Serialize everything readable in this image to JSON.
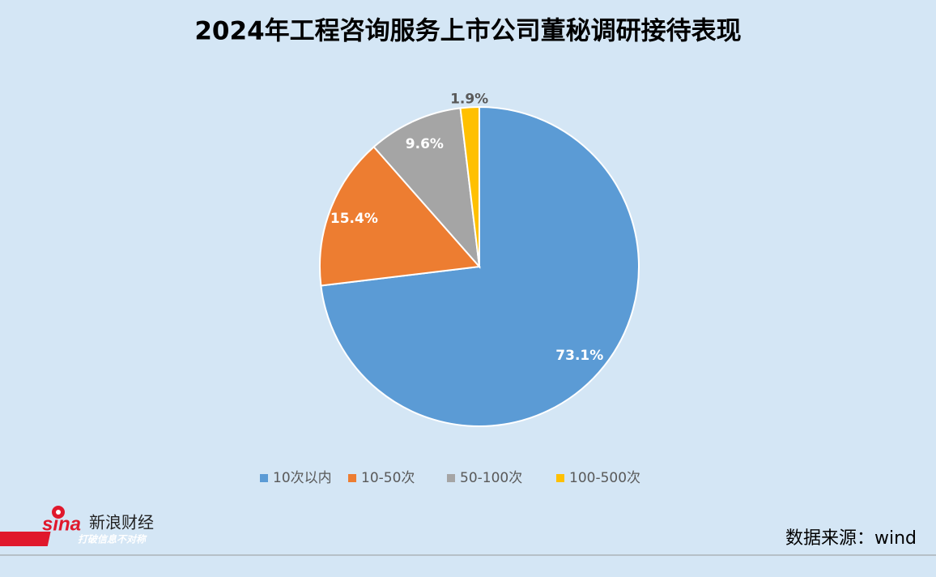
{
  "chart_data": {
    "type": "pie",
    "title": "2024年工程咨询服务上市公司董秘调研接待表现",
    "categories": [
      "10次以内",
      "10-50次",
      "50-100次",
      "100-500次"
    ],
    "values": [
      73.1,
      15.4,
      9.6,
      1.9
    ],
    "value_labels": [
      "73.1%",
      "15.4%",
      "9.6%",
      "1.9%"
    ],
    "colors": [
      "#5b9bd5",
      "#ed7d31",
      "#a5a5a5",
      "#ffc000"
    ],
    "legend": "bottom"
  },
  "source": "数据来源：wind",
  "logo": {
    "brand": "sina",
    "name": "新浪财经",
    "slogan": "打破信息不对称"
  }
}
